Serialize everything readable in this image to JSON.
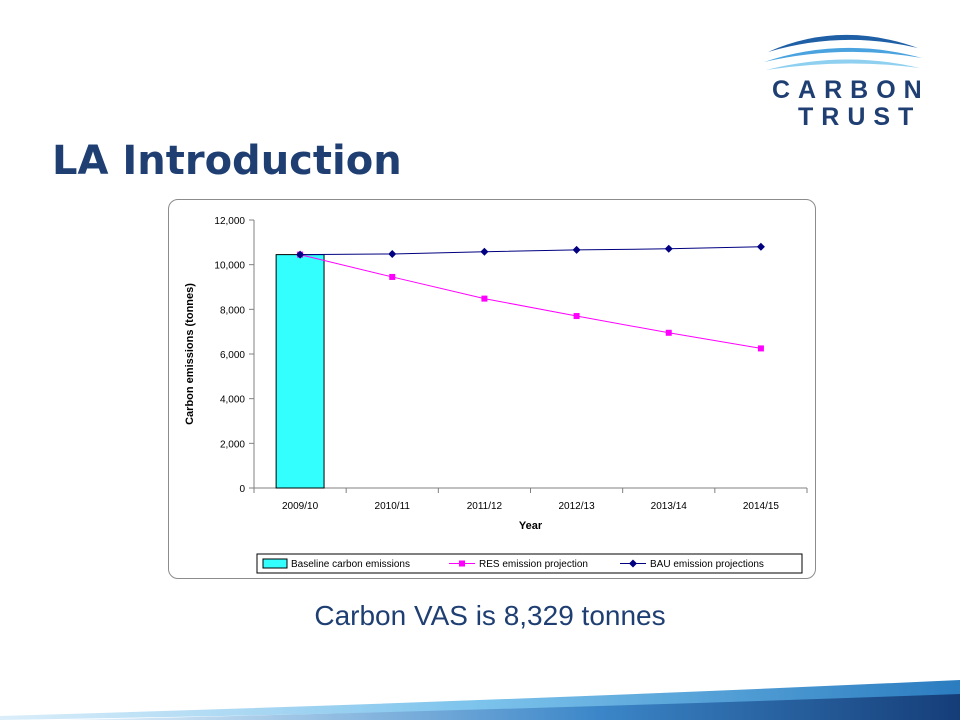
{
  "slide": {
    "title": "LA Introduction",
    "caption": "Carbon VAS is  8,329 tonnes"
  },
  "logo": {
    "line1": "CARBON",
    "line2": "TRUST"
  },
  "colors": {
    "title": "#1f3f73",
    "baseline_bar": "#33ffff",
    "res_line": "#ff00ff",
    "bau_line": "#000080"
  },
  "chart_data": {
    "type": "bar",
    "categories": [
      "2009/10",
      "2010/11",
      "2011/12",
      "2012/13",
      "2013/14",
      "2014/15"
    ],
    "series": [
      {
        "name": "Baseline carbon emissions",
        "type": "bar",
        "values": [
          10450,
          null,
          null,
          null,
          null,
          null
        ]
      },
      {
        "name": "RES emission projection",
        "type": "line",
        "marker": "square",
        "values": [
          10450,
          9450,
          8480,
          7700,
          6950,
          6250
        ]
      },
      {
        "name": "BAU emission projections",
        "type": "line",
        "marker": "diamond",
        "values": [
          10450,
          10480,
          10580,
          10660,
          10710,
          10800
        ]
      }
    ],
    "xlabel": "Year",
    "ylabel": "Carbon emissions (tonnes)",
    "ylim": [
      0,
      12000
    ],
    "yticks": [
      "0",
      "2,000",
      "4,000",
      "6,000",
      "8,000",
      "10,000",
      "12,000"
    ],
    "grid": false,
    "legend": "bottom"
  }
}
